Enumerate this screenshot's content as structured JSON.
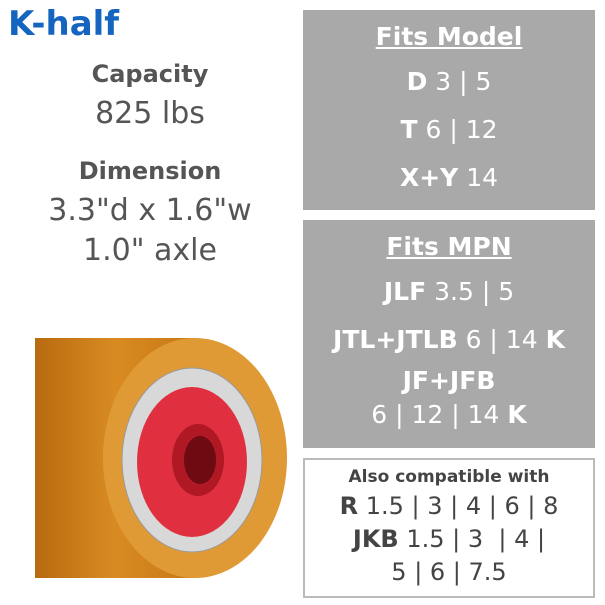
{
  "header": {
    "title": "K-half"
  },
  "capacity": {
    "label": "Capacity",
    "value": "825 lbs"
  },
  "dimension": {
    "label": "Dimension",
    "value": "3.3\"d x 1.6\"w",
    "axle": "1.0\" axle"
  },
  "fits_model": {
    "title": "Fits Model",
    "rows": [
      [
        "D",
        "3 | 5"
      ],
      [
        "T",
        "6 | 12"
      ],
      [
        "X+Y",
        "14"
      ]
    ]
  },
  "fits_mpn": {
    "title": "Fits MPN",
    "rows": [
      [
        "JLF",
        "3.5 | 5"
      ],
      [
        "JTL+JTLB",
        "6 | 14",
        "K"
      ]
    ],
    "last": {
      "name": "JF+JFB",
      "text": "6 | 12 | 14",
      "suffix": "K"
    }
  },
  "also_compatible": {
    "title": "Also compatible with",
    "rows": [
      [
        "R",
        "1.5 | 3 | 4 | 6 | 8"
      ],
      [
        "JKB",
        "1.5 | 3  | 4 |"
      ]
    ],
    "tail": "5 | 6 | 7.5"
  }
}
